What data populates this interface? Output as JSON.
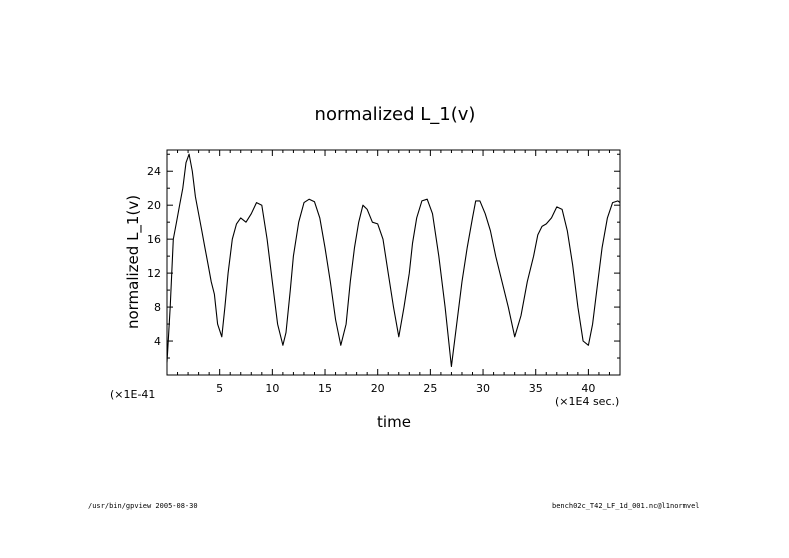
{
  "chart_data": {
    "type": "line",
    "title": "normalized L_1(v)",
    "xlabel": "time",
    "ylabel": "normalized L_1(v)",
    "x_multiplier": "(×1E4 sec.)",
    "y_multiplier": "(×1E-41",
    "xlim": [
      0,
      43
    ],
    "ylim": [
      0,
      26.5
    ],
    "x_ticks": [
      5,
      10,
      15,
      20,
      25,
      30,
      35,
      40
    ],
    "y_ticks": [
      4,
      8,
      12,
      16,
      20,
      24
    ],
    "grid": false,
    "series": [
      {
        "name": "normalized L_1(v)",
        "x": [
          0,
          0.3,
          0.6,
          0.9,
          1.2,
          1.5,
          1.8,
          2.1,
          2.4,
          2.7,
          3.0,
          3.3,
          3.6,
          3.9,
          4.2,
          4.5,
          4.8,
          5.2,
          5.5,
          5.8,
          6.2,
          6.6,
          7.0,
          7.5,
          8.0,
          8.5,
          9.0,
          9.5,
          10.0,
          10.5,
          11.0,
          11.3,
          11.7,
          12.0,
          12.5,
          13.0,
          13.5,
          14.0,
          14.5,
          15.0,
          15.5,
          16.0,
          16.5,
          17.0,
          17.4,
          17.8,
          18.2,
          18.6,
          19.0,
          19.5,
          20.0,
          20.5,
          21.0,
          21.5,
          22.0,
          22.5,
          23.0,
          23.3,
          23.7,
          24.2,
          24.7,
          25.2,
          25.8,
          26.4,
          27.0,
          27.5,
          28.0,
          28.5,
          29.0,
          29.3,
          29.7,
          30.2,
          30.7,
          31.2,
          31.8,
          32.4,
          33.0,
          33.6,
          34.2,
          34.8,
          35.2,
          35.6,
          36.0,
          36.5,
          37.0,
          37.5,
          38.0,
          38.5,
          39.0,
          39.5,
          40.0,
          40.4,
          40.8,
          41.3,
          41.8,
          42.3,
          42.8,
          43.0
        ],
        "values": [
          1.5,
          8,
          16,
          18,
          20,
          22,
          25,
          26,
          24,
          21,
          19,
          17,
          15,
          13,
          11,
          9.5,
          6,
          4.5,
          8,
          12,
          16,
          17.8,
          18.5,
          18,
          19,
          20.3,
          20,
          16,
          11,
          6,
          3.5,
          5,
          10,
          14,
          18,
          20.3,
          20.7,
          20.4,
          18.5,
          15,
          11,
          6.5,
          3.5,
          6,
          11,
          15,
          18,
          20,
          19.5,
          18,
          17.8,
          16,
          12,
          8,
          4.5,
          8,
          12,
          15.5,
          18.5,
          20.5,
          20.7,
          19,
          14,
          8,
          1,
          6,
          11,
          15,
          18.5,
          20.5,
          20.5,
          19,
          17,
          14,
          11,
          8,
          4.5,
          7,
          11,
          14,
          16.5,
          17.5,
          17.8,
          18.5,
          19.8,
          19.5,
          17,
          13,
          8,
          4,
          3.5,
          6,
          10,
          15,
          18.5,
          20.3,
          20.5,
          20.3
        ]
      }
    ]
  },
  "footer": {
    "left": "/usr/bin/gpview  2005-08-30",
    "right": "bench02c_T42_LF_1d_001.nc@l1normvel"
  }
}
